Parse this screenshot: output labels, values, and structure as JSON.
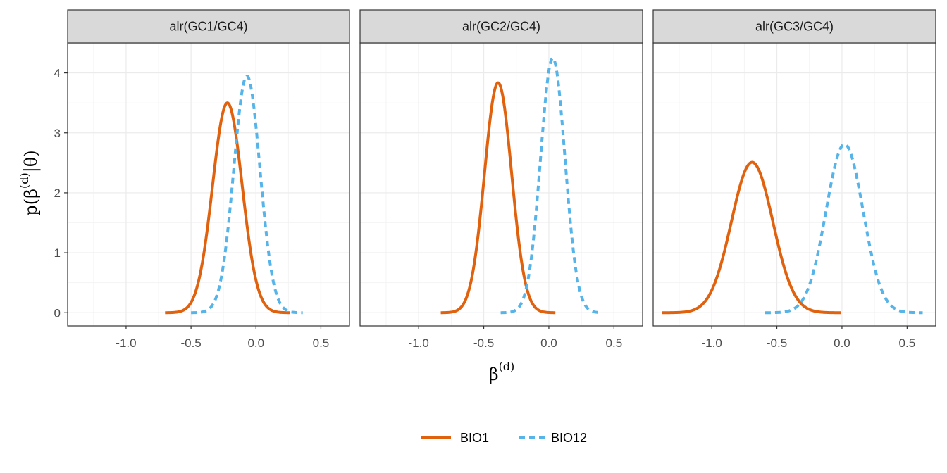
{
  "chart_data": {
    "type": "line",
    "xlabel": "β(d)",
    "ylabel": "p(β(d)|θ)",
    "xlim": [
      -1.45,
      0.72
    ],
    "ylim": [
      -0.22,
      4.5
    ],
    "x_ticks": [
      -1.0,
      -0.5,
      0.0,
      0.5
    ],
    "x_tick_labels": [
      "-1.0",
      "-0.5",
      "0.0",
      "0.5"
    ],
    "y_ticks": [
      0,
      1,
      2,
      3,
      4
    ],
    "y_tick_labels": [
      "0",
      "1",
      "2",
      "3",
      "4"
    ],
    "grid": true,
    "legend_position": "bottom",
    "series_styles": [
      {
        "name": "BIO1",
        "color": "#e1620e",
        "dash": "solid"
      },
      {
        "name": "BIO12",
        "color": "#56b4e9",
        "dash": "dashed"
      }
    ],
    "facets": [
      {
        "title": "alr(GC1/GC4)",
        "series": [
          {
            "name": "BIO1",
            "mean": -0.22,
            "sd": 0.114,
            "x_range": [
              -0.7,
              0.26
            ]
          },
          {
            "name": "BIO12",
            "mean": -0.07,
            "sd": 0.101,
            "x_range": [
              -0.5,
              0.36
            ]
          }
        ]
      },
      {
        "title": "alr(GC2/GC4)",
        "series": [
          {
            "name": "BIO1",
            "mean": -0.39,
            "sd": 0.104,
            "x_range": [
              -0.83,
              0.05
            ]
          },
          {
            "name": "BIO12",
            "mean": 0.03,
            "sd": 0.094,
            "x_range": [
              -0.37,
              0.4
            ]
          }
        ]
      },
      {
        "title": "alr(GC3/GC4)",
        "series": [
          {
            "name": "BIO1",
            "mean": -0.69,
            "sd": 0.159,
            "x_range": [
              -1.38,
              -0.01
            ]
          },
          {
            "name": "BIO12",
            "mean": 0.02,
            "sd": 0.142,
            "x_range": [
              -0.59,
              0.62
            ]
          }
        ]
      }
    ]
  },
  "legend": {
    "items": [
      {
        "label": "BIO1"
      },
      {
        "label": "BIO12"
      }
    ]
  }
}
